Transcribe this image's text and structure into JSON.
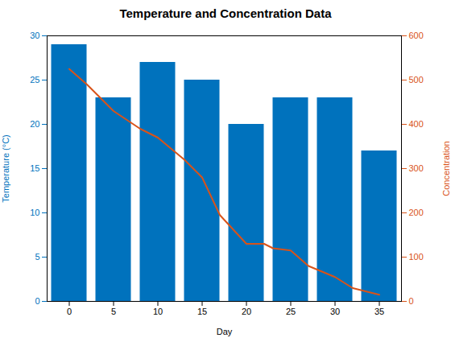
{
  "chart_data": {
    "type": "bar",
    "title": "Temperature and Concentration Data",
    "xlabel": "Day",
    "ylabel": "Temperature (°C)",
    "y2label": "Concentration",
    "series": [
      {
        "type": "bar",
        "color": "#0072BD",
        "x": [
          0,
          5,
          10,
          15,
          20,
          25,
          30,
          35
        ],
        "values": [
          29,
          23,
          27,
          25,
          20,
          23,
          23,
          17
        ]
      },
      {
        "type": "line",
        "color": "#D95319",
        "axis": "y2",
        "x": [
          0,
          2,
          5,
          8,
          10,
          13,
          15,
          17,
          20,
          22,
          23,
          25,
          27,
          30,
          32,
          35
        ],
        "values": [
          525,
          490,
          430,
          390,
          370,
          320,
          280,
          195,
          130,
          130,
          120,
          115,
          80,
          55,
          30,
          15
        ]
      }
    ],
    "xlim": [
      -2.5,
      37.5
    ],
    "xticks": [
      0,
      5,
      10,
      15,
      20,
      25,
      30,
      35
    ],
    "ylim": [
      0,
      30
    ],
    "yticks": [
      0,
      5,
      10,
      15,
      20,
      25,
      30
    ],
    "y2lim": [
      0,
      600
    ],
    "y2ticks": [
      0,
      100,
      200,
      300,
      400,
      500,
      600
    ],
    "grid": false
  }
}
